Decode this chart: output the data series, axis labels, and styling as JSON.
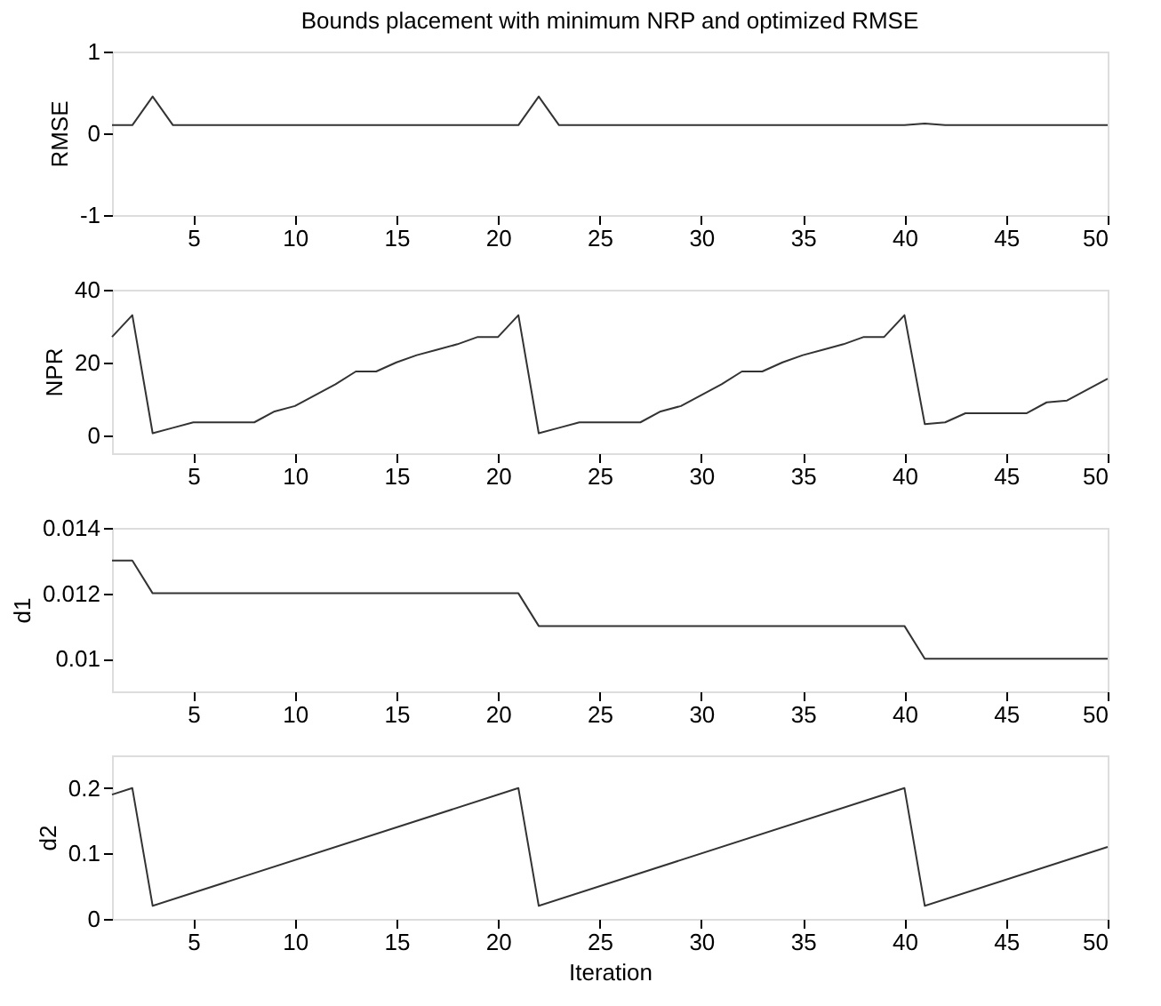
{
  "chart_data": [
    {
      "type": "line",
      "title": "Bounds placement with minimum NRP and optimized RMSE",
      "ylabel": "RMSE",
      "xlim": [
        1,
        50
      ],
      "xticks": [
        5,
        10,
        15,
        20,
        25,
        30,
        35,
        40,
        45,
        50
      ],
      "ylim": [
        -1,
        1
      ],
      "yticks": [
        -1,
        0,
        1
      ],
      "grid": false,
      "series": [
        {
          "color": "#333333",
          "x": [
            1,
            2,
            3,
            4,
            21,
            22,
            23,
            40,
            41,
            42,
            50
          ],
          "values": [
            0.1,
            0.1,
            0.45,
            0.1,
            0.1,
            0.45,
            0.1,
            0.1,
            0.12,
            0.1,
            0.1
          ]
        }
      ]
    },
    {
      "type": "line",
      "ylabel": "NPR",
      "xlim": [
        1,
        50
      ],
      "xticks": [
        5,
        10,
        15,
        20,
        25,
        30,
        35,
        40,
        45,
        50
      ],
      "ylim": [
        -5,
        40
      ],
      "yticks": [
        0,
        20,
        40
      ],
      "grid": false,
      "series": [
        {
          "color": "#333333",
          "x": [
            1,
            2,
            3,
            4,
            5,
            6,
            7,
            8,
            9,
            10,
            11,
            12,
            13,
            14,
            15,
            16,
            17,
            18,
            19,
            20,
            21,
            22,
            23,
            24,
            25,
            26,
            27,
            28,
            29,
            30,
            31,
            32,
            33,
            34,
            35,
            36,
            37,
            38,
            39,
            40,
            41,
            42,
            43,
            44,
            45,
            46,
            47,
            48,
            49,
            50
          ],
          "values": [
            27,
            33,
            0.5,
            2,
            3.5,
            3.5,
            3.5,
            3.5,
            6.5,
            8,
            11,
            14,
            17.5,
            17.5,
            20,
            22,
            23.5,
            25,
            27,
            27,
            33,
            0.5,
            2,
            3.5,
            3.5,
            3.5,
            3.5,
            6.5,
            8,
            11,
            14,
            17.5,
            17.5,
            20,
            22,
            23.5,
            25,
            27,
            27,
            33,
            3,
            3.5,
            6,
            6,
            6,
            6,
            9,
            9.5,
            12.5,
            15.5
          ]
        }
      ]
    },
    {
      "type": "line",
      "ylabel": "d1",
      "xlim": [
        1,
        50
      ],
      "xticks": [
        5,
        10,
        15,
        20,
        25,
        30,
        35,
        40,
        45,
        50
      ],
      "ylim": [
        0.009,
        0.014
      ],
      "yticks": [
        0.01,
        0.012,
        0.014
      ],
      "grid": false,
      "series": [
        {
          "color": "#333333",
          "x": [
            1,
            2,
            3,
            21,
            22,
            40,
            41,
            50
          ],
          "values": [
            0.013,
            0.013,
            0.012,
            0.012,
            0.011,
            0.011,
            0.01,
            0.01
          ]
        }
      ]
    },
    {
      "type": "line",
      "ylabel": "d2",
      "xlabel": "Iteration",
      "xlim": [
        1,
        50
      ],
      "xticks": [
        5,
        10,
        15,
        20,
        25,
        30,
        35,
        40,
        45,
        50
      ],
      "ylim": [
        0,
        0.25
      ],
      "yticks": [
        0,
        0.1,
        0.2
      ],
      "grid": false,
      "series": [
        {
          "color": "#333333",
          "x": [
            1,
            2,
            3,
            21,
            22,
            40,
            41,
            50
          ],
          "values": [
            0.19,
            0.2,
            0.02,
            0.2,
            0.02,
            0.2,
            0.02,
            0.11
          ]
        }
      ]
    }
  ]
}
